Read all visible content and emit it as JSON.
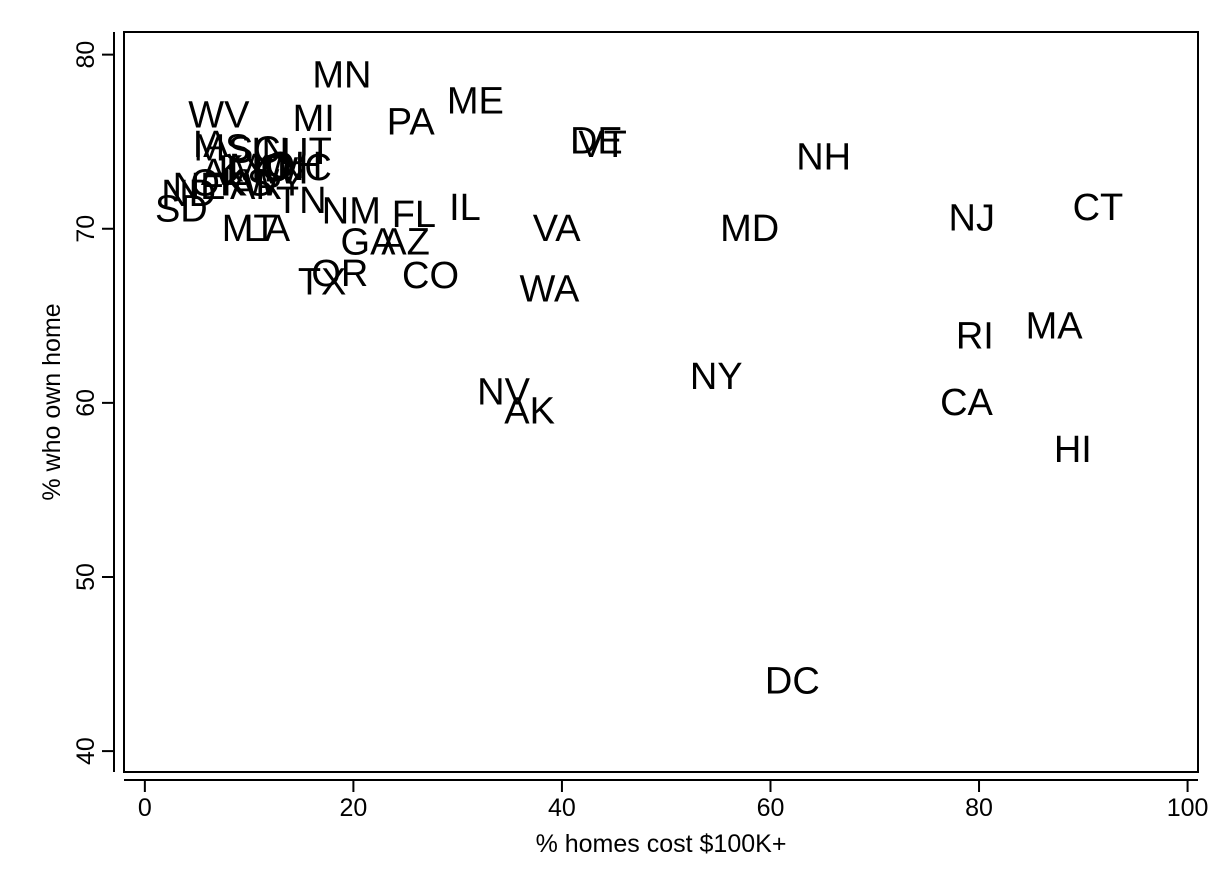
{
  "chart_data": {
    "type": "scatter",
    "title": "",
    "xlabel": "% homes cost $100K+",
    "ylabel": "% who own home",
    "xlim": [
      -2,
      101
    ],
    "ylim": [
      38.8,
      81.3
    ],
    "xticks": [
      0,
      20,
      40,
      60,
      80,
      100
    ],
    "yticks": [
      40,
      50,
      60,
      70,
      80
    ],
    "grid": false,
    "legend": "none",
    "marker": "text",
    "points": [
      {
        "label": "MN",
        "x": 18.9,
        "y": 78.8
      },
      {
        "label": "WV",
        "x": 7.1,
        "y": 76.5
      },
      {
        "label": "MI",
        "x": 16.2,
        "y": 76.3
      },
      {
        "label": "PA",
        "x": 25.5,
        "y": 76.1
      },
      {
        "label": "ME",
        "x": 31.7,
        "y": 77.3
      },
      {
        "label": "DE",
        "x": 43.3,
        "y": 75.0
      },
      {
        "label": "VT",
        "x": 43.9,
        "y": 74.8
      },
      {
        "label": "NH",
        "x": 65.1,
        "y": 74.1
      },
      {
        "label": "IA",
        "x": 6.3,
        "y": 74.8
      },
      {
        "label": "MS",
        "x": 7.4,
        "y": 74.6
      },
      {
        "label": "SC",
        "x": 10.5,
        "y": 74.5
      },
      {
        "label": "IN",
        "x": 12.0,
        "y": 74.4
      },
      {
        "label": "UT",
        "x": 15.5,
        "y": 74.4
      },
      {
        "label": "AL",
        "x": 7.6,
        "y": 73.2
      },
      {
        "label": "KY",
        "x": 9.5,
        "y": 73.4
      },
      {
        "label": "MO",
        "x": 11.0,
        "y": 73.5
      },
      {
        "label": "ID",
        "x": 12.2,
        "y": 73.4
      },
      {
        "label": "OH",
        "x": 14.3,
        "y": 73.6
      },
      {
        "label": "WI",
        "x": 13.5,
        "y": 73.3
      },
      {
        "label": "NC",
        "x": 15.3,
        "y": 73.5
      },
      {
        "label": "NE",
        "x": 5.2,
        "y": 72.4
      },
      {
        "label": "OK",
        "x": 7.0,
        "y": 72.6
      },
      {
        "label": "KS",
        "x": 9.8,
        "y": 72.6
      },
      {
        "label": "AR",
        "x": 10.7,
        "y": 72.4
      },
      {
        "label": "WY",
        "x": 12.4,
        "y": 72.6
      },
      {
        "label": "ND",
        "x": 4.2,
        "y": 72.0
      },
      {
        "label": "SD",
        "x": 3.5,
        "y": 71.1
      },
      {
        "label": "IL",
        "x": 30.7,
        "y": 71.2
      },
      {
        "label": "TN",
        "x": 15.0,
        "y": 71.6
      },
      {
        "label": "NM",
        "x": 19.8,
        "y": 71.0
      },
      {
        "label": "MT",
        "x": 10.0,
        "y": 70.0
      },
      {
        "label": "LA",
        "x": 11.7,
        "y": 70.0
      },
      {
        "label": "FL",
        "x": 25.8,
        "y": 70.8
      },
      {
        "label": "VA",
        "x": 39.5,
        "y": 70.0
      },
      {
        "label": "MD",
        "x": 58.0,
        "y": 70.0
      },
      {
        "label": "NJ",
        "x": 79.3,
        "y": 70.6
      },
      {
        "label": "CT",
        "x": 91.4,
        "y": 71.2
      },
      {
        "label": "GA",
        "x": 21.4,
        "y": 69.2
      },
      {
        "label": "AZ",
        "x": 25.0,
        "y": 69.2
      },
      {
        "label": "TX",
        "x": 17.0,
        "y": 66.9
      },
      {
        "label": "OR",
        "x": 18.7,
        "y": 67.4
      },
      {
        "label": "CO",
        "x": 27.4,
        "y": 67.3
      },
      {
        "label": "WA",
        "x": 38.8,
        "y": 66.5
      },
      {
        "label": "RI",
        "x": 79.6,
        "y": 63.8
      },
      {
        "label": "MA",
        "x": 87.2,
        "y": 64.4
      },
      {
        "label": "NY",
        "x": 54.8,
        "y": 61.5
      },
      {
        "label": "NV",
        "x": 34.4,
        "y": 60.6
      },
      {
        "label": "AK",
        "x": 36.9,
        "y": 59.5
      },
      {
        "label": "CA",
        "x": 78.8,
        "y": 60.0
      },
      {
        "label": "HI",
        "x": 89.0,
        "y": 57.3
      },
      {
        "label": "DC",
        "x": 62.1,
        "y": 44.0
      }
    ]
  }
}
